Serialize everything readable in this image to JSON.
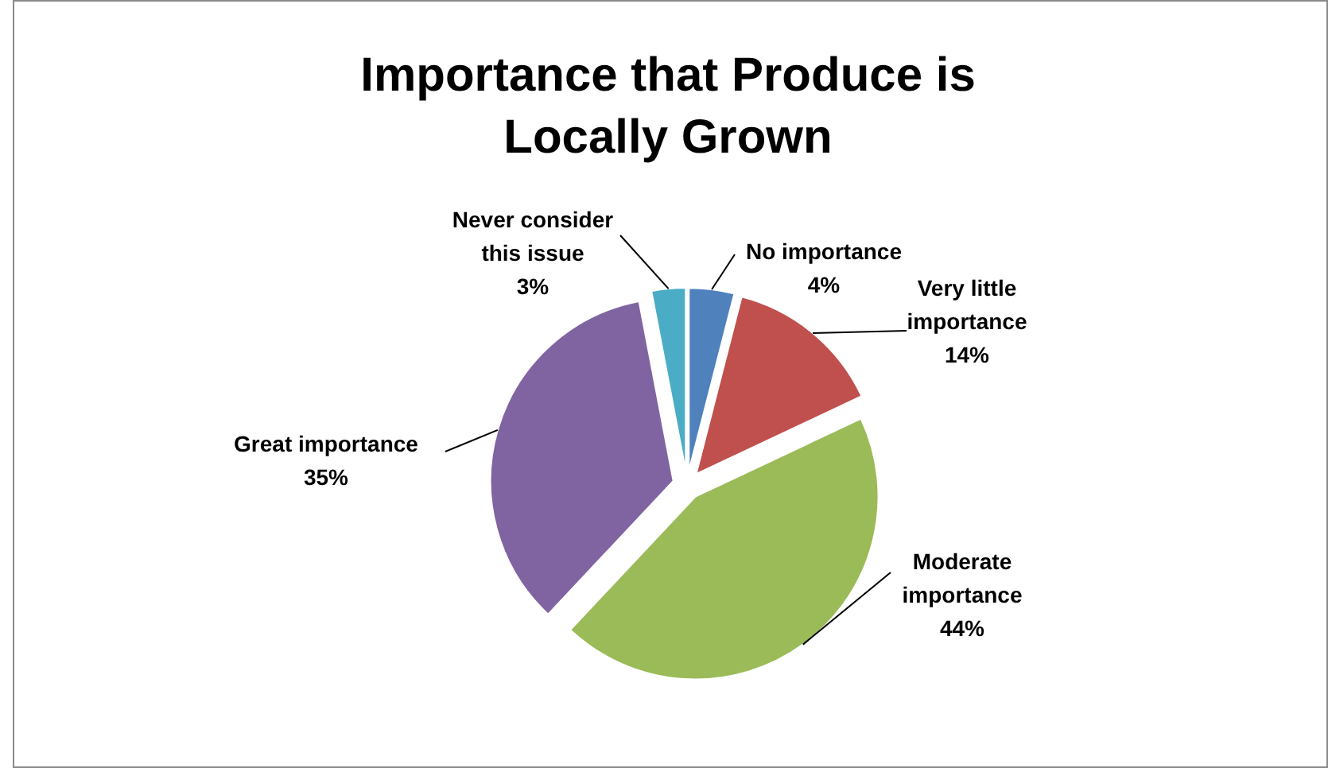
{
  "chart_data": {
    "type": "pie",
    "title": "Importance that Produce is Locally Grown",
    "categories": [
      "No importance",
      "Very little importance",
      "Moderate importance",
      "Great importance",
      "Never consider this issue"
    ],
    "values": [
      4,
      14,
      44,
      35,
      3
    ],
    "colors": [
      "#4f81bd",
      "#c0504d",
      "#9bbb59",
      "#8064a2",
      "#4bacc6"
    ],
    "value_labels": [
      "4%",
      "14%",
      "44%",
      "35%",
      "3%"
    ]
  }
}
